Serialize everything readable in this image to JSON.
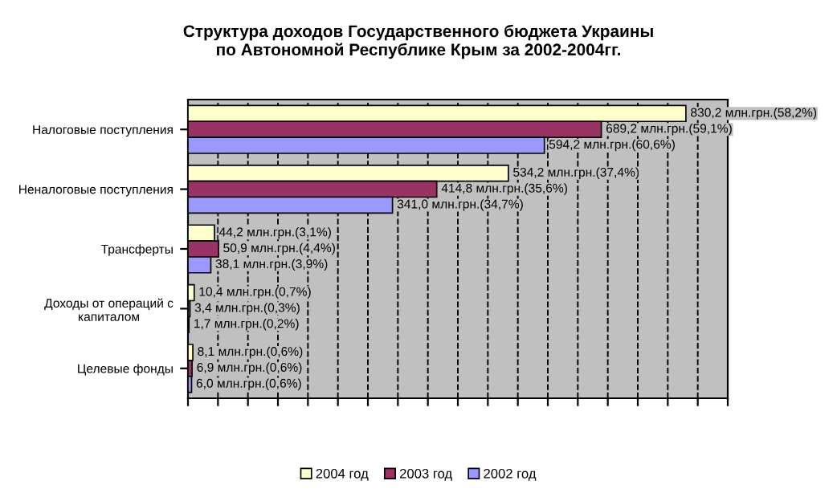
{
  "chart_data": {
    "type": "bar",
    "orientation": "horizontal",
    "title": "Структура доходов Государственного бюджета Украины\nпо Автономной Республике Крым за 2002-2004гг.",
    "categories": [
      "Налоговые поступления",
      "Неналоговые поступления",
      "Трансферты",
      "Доходы от операций с\nкапиталом",
      "Целевые фонды"
    ],
    "series": [
      {
        "name": "2004 год",
        "color": "#ffffcc",
        "values": [
          830.2,
          534.2,
          44.2,
          10.4,
          8.1
        ],
        "value_labels": [
          "830,2 млн.грн.(58,2%)",
          "534,2 млн.грн.(37,4%)",
          "44,2 млн.грн.(3,1%)",
          "10,4 млн.грн.(0,7%)",
          "8,1 млн.грн.(0,6%)"
        ]
      },
      {
        "name": "2003 год",
        "color": "#993366",
        "values": [
          689.2,
          414.8,
          50.9,
          3.4,
          6.9
        ],
        "value_labels": [
          "689,2 млн.грн.(59,1%)",
          "414,8 млн.грн.(35,6%)",
          "50,9 млн.грн.(4,4%)",
          "3,4 млн.грн.(0,3%)",
          "6,9 млн.грн.(0,6%)"
        ]
      },
      {
        "name": "2002 год",
        "color": "#9999ff",
        "values": [
          594.2,
          341.0,
          38.1,
          1.7,
          6.0
        ],
        "value_labels": [
          "594,2 млн.грн.(60,6%)",
          "341,0 млн.грн.(34,7%)",
          "38,1 млн.грн.(3,9%)",
          "1,7 млн.грн.(0,2%)",
          "6,0 млн.грн.(0,6%)"
        ]
      }
    ],
    "xlim": [
      0,
      900
    ],
    "xticks": [
      {
        "value": 0,
        "label": null
      },
      {
        "value": 50,
        "label": null
      },
      {
        "value": 100,
        "label": null
      },
      {
        "value": 150,
        "label": null
      },
      {
        "value": 200,
        "label": null
      },
      {
        "value": 250,
        "label": null
      },
      {
        "value": 300,
        "label": null
      },
      {
        "value": 350,
        "label": null
      },
      {
        "value": 400,
        "label": null
      },
      {
        "value": 450,
        "label": null
      },
      {
        "value": 500,
        "label": null
      },
      {
        "value": 550,
        "label": null
      },
      {
        "value": 600,
        "label": null
      },
      {
        "value": 650,
        "label": null
      },
      {
        "value": 700,
        "label": null
      },
      {
        "value": 750,
        "label": null
      },
      {
        "value": 800,
        "label": null
      },
      {
        "value": 850,
        "label": null
      },
      {
        "value": 900,
        "label": null
      }
    ],
    "grid": "x",
    "legend": "bottom",
    "line_style": "dashed"
  }
}
